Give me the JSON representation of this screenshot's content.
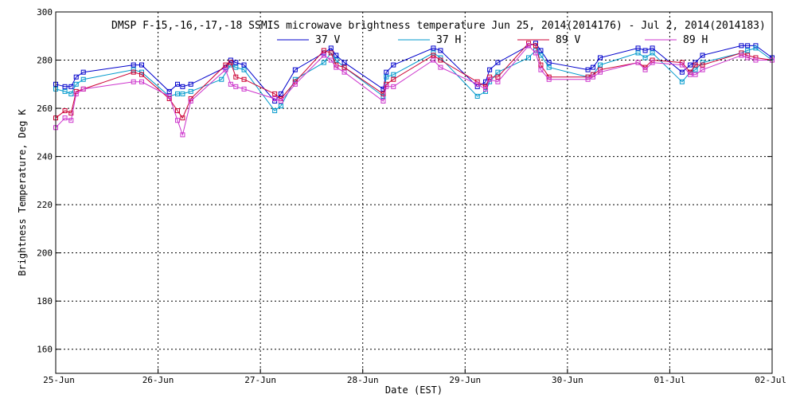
{
  "chart_data": {
    "type": "line",
    "title": "DMSP F-15,-16,-17,-18 SSMIS microwave brightness temperature Jun 25, 2014(2014176) - Jul  2, 2014(2014183)",
    "xlabel": "Date (EST)",
    "ylabel": "Brightness Temperature, Deg K",
    "xlim": [
      0,
      7
    ],
    "ylim": [
      150,
      300
    ],
    "y_ticks": [
      160,
      180,
      200,
      220,
      240,
      260,
      280,
      300
    ],
    "x_ticks": [
      {
        "value": 0,
        "label": "25-Jun"
      },
      {
        "value": 1,
        "label": "26-Jun"
      },
      {
        "value": 2,
        "label": "27-Jun"
      },
      {
        "value": 3,
        "label": "28-Jun"
      },
      {
        "value": 4,
        "label": "29-Jun"
      },
      {
        "value": 5,
        "label": "30-Jun"
      },
      {
        "value": 6,
        "label": "01-Jul"
      },
      {
        "value": 7,
        "label": "02-Jul"
      }
    ],
    "grid": true,
    "legend_position": "top-center",
    "series": [
      {
        "name": "37 V",
        "color": "#0000cc",
        "points": [
          [
            0.0,
            270
          ],
          [
            0.09,
            269
          ],
          [
            0.15,
            269
          ],
          [
            0.2,
            273
          ],
          [
            0.27,
            275
          ],
          [
            0.76,
            278
          ],
          [
            0.84,
            278
          ],
          [
            1.11,
            267
          ],
          [
            1.19,
            270
          ],
          [
            1.24,
            269
          ],
          [
            1.32,
            270
          ],
          [
            1.66,
            277
          ],
          [
            1.71,
            280
          ],
          [
            1.76,
            279
          ],
          [
            1.84,
            278
          ],
          [
            2.14,
            263
          ],
          [
            2.2,
            266
          ],
          [
            2.34,
            276
          ],
          [
            2.62,
            283
          ],
          [
            2.69,
            285
          ],
          [
            2.74,
            282
          ],
          [
            2.82,
            279
          ],
          [
            3.2,
            268
          ],
          [
            3.23,
            275
          ],
          [
            3.3,
            278
          ],
          [
            3.69,
            285
          ],
          [
            3.76,
            284
          ],
          [
            4.12,
            269
          ],
          [
            4.2,
            271
          ],
          [
            4.24,
            276
          ],
          [
            4.32,
            279
          ],
          [
            4.62,
            286
          ],
          [
            4.69,
            287
          ],
          [
            4.74,
            284
          ],
          [
            4.82,
            279
          ],
          [
            5.2,
            276
          ],
          [
            5.25,
            277
          ],
          [
            5.32,
            281
          ],
          [
            5.69,
            285
          ],
          [
            5.76,
            284
          ],
          [
            5.83,
            285
          ],
          [
            6.12,
            275
          ],
          [
            6.2,
            278
          ],
          [
            6.25,
            279
          ],
          [
            6.32,
            282
          ],
          [
            6.7,
            286
          ],
          [
            6.76,
            286
          ],
          [
            6.84,
            286
          ],
          [
            7.0,
            281
          ]
        ]
      },
      {
        "name": "37 H",
        "color": "#0099cc",
        "points": [
          [
            0.0,
            268
          ],
          [
            0.09,
            267
          ],
          [
            0.15,
            266
          ],
          [
            0.2,
            270
          ],
          [
            0.27,
            272
          ],
          [
            0.76,
            276
          ],
          [
            0.84,
            275
          ],
          [
            1.11,
            265
          ],
          [
            1.19,
            266
          ],
          [
            1.24,
            266
          ],
          [
            1.32,
            267
          ],
          [
            1.62,
            272
          ],
          [
            1.71,
            278
          ],
          [
            1.76,
            277
          ],
          [
            1.84,
            276
          ],
          [
            2.14,
            259
          ],
          [
            2.2,
            261
          ],
          [
            2.34,
            272
          ],
          [
            2.62,
            279
          ],
          [
            2.69,
            283
          ],
          [
            2.74,
            280
          ],
          [
            2.82,
            277
          ],
          [
            3.2,
            265
          ],
          [
            3.23,
            273
          ],
          [
            3.3,
            274
          ],
          [
            3.69,
            283
          ],
          [
            3.76,
            281
          ],
          [
            4.12,
            265
          ],
          [
            4.2,
            267
          ],
          [
            4.24,
            271
          ],
          [
            4.32,
            275
          ],
          [
            4.62,
            281
          ],
          [
            4.69,
            284
          ],
          [
            4.74,
            282
          ],
          [
            4.82,
            277
          ],
          [
            5.2,
            273
          ],
          [
            5.25,
            274
          ],
          [
            5.32,
            278
          ],
          [
            5.69,
            283
          ],
          [
            5.76,
            281
          ],
          [
            5.83,
            283
          ],
          [
            6.12,
            271
          ],
          [
            6.2,
            275
          ],
          [
            6.25,
            276
          ],
          [
            6.32,
            279
          ],
          [
            6.7,
            283
          ],
          [
            6.76,
            284
          ],
          [
            6.84,
            285
          ],
          [
            7.0,
            280
          ]
        ]
      },
      {
        "name": "89 V",
        "color": "#cc0033",
        "points": [
          [
            0.0,
            256
          ],
          [
            0.09,
            259
          ],
          [
            0.15,
            258
          ],
          [
            0.2,
            267
          ],
          [
            0.27,
            268
          ],
          [
            0.76,
            275
          ],
          [
            0.84,
            274
          ],
          [
            1.11,
            264
          ],
          [
            1.19,
            259
          ],
          [
            1.24,
            256
          ],
          [
            1.32,
            264
          ],
          [
            1.66,
            278
          ],
          [
            1.71,
            279
          ],
          [
            1.76,
            273
          ],
          [
            1.84,
            272
          ],
          [
            2.14,
            266
          ],
          [
            2.2,
            264
          ],
          [
            2.34,
            271
          ],
          [
            2.62,
            284
          ],
          [
            2.69,
            283
          ],
          [
            2.74,
            278
          ],
          [
            2.82,
            277
          ],
          [
            3.2,
            266
          ],
          [
            3.23,
            270
          ],
          [
            3.3,
            272
          ],
          [
            3.69,
            282
          ],
          [
            3.76,
            280
          ],
          [
            4.12,
            271
          ],
          [
            4.2,
            269
          ],
          [
            4.24,
            273
          ],
          [
            4.32,
            273
          ],
          [
            4.62,
            287
          ],
          [
            4.69,
            286
          ],
          [
            4.74,
            278
          ],
          [
            4.82,
            273
          ],
          [
            5.2,
            273
          ],
          [
            5.25,
            274
          ],
          [
            5.32,
            276
          ],
          [
            5.69,
            279
          ],
          [
            5.76,
            277
          ],
          [
            5.83,
            280
          ],
          [
            6.12,
            279
          ],
          [
            6.2,
            275
          ],
          [
            6.25,
            278
          ],
          [
            6.32,
            278
          ],
          [
            6.7,
            283
          ],
          [
            6.76,
            282
          ],
          [
            6.84,
            281
          ],
          [
            7.0,
            280
          ]
        ]
      },
      {
        "name": "89 H",
        "color": "#cc33cc",
        "points": [
          [
            0.0,
            252
          ],
          [
            0.09,
            256
          ],
          [
            0.15,
            255
          ],
          [
            0.2,
            266
          ],
          [
            0.27,
            268
          ],
          [
            0.76,
            271
          ],
          [
            0.84,
            271
          ],
          [
            1.11,
            265
          ],
          [
            1.19,
            255
          ],
          [
            1.24,
            249
          ],
          [
            1.32,
            263
          ],
          [
            1.66,
            276
          ],
          [
            1.71,
            270
          ],
          [
            1.76,
            269
          ],
          [
            1.84,
            268
          ],
          [
            2.14,
            264
          ],
          [
            2.2,
            263
          ],
          [
            2.34,
            270
          ],
          [
            2.62,
            282
          ],
          [
            2.69,
            280
          ],
          [
            2.74,
            277
          ],
          [
            2.82,
            275
          ],
          [
            3.2,
            263
          ],
          [
            3.23,
            269
          ],
          [
            3.3,
            269
          ],
          [
            3.69,
            280
          ],
          [
            3.76,
            277
          ],
          [
            4.12,
            270
          ],
          [
            4.2,
            268
          ],
          [
            4.24,
            272
          ],
          [
            4.32,
            271
          ],
          [
            4.62,
            286
          ],
          [
            4.69,
            283
          ],
          [
            4.74,
            276
          ],
          [
            4.82,
            272
          ],
          [
            5.2,
            272
          ],
          [
            5.25,
            273
          ],
          [
            5.32,
            275
          ],
          [
            5.69,
            279
          ],
          [
            5.76,
            276
          ],
          [
            5.83,
            279
          ],
          [
            6.12,
            278
          ],
          [
            6.2,
            274
          ],
          [
            6.25,
            274
          ],
          [
            6.32,
            276
          ],
          [
            6.7,
            282
          ],
          [
            6.76,
            281
          ],
          [
            6.84,
            280
          ],
          [
            7.0,
            280
          ]
        ]
      }
    ]
  }
}
